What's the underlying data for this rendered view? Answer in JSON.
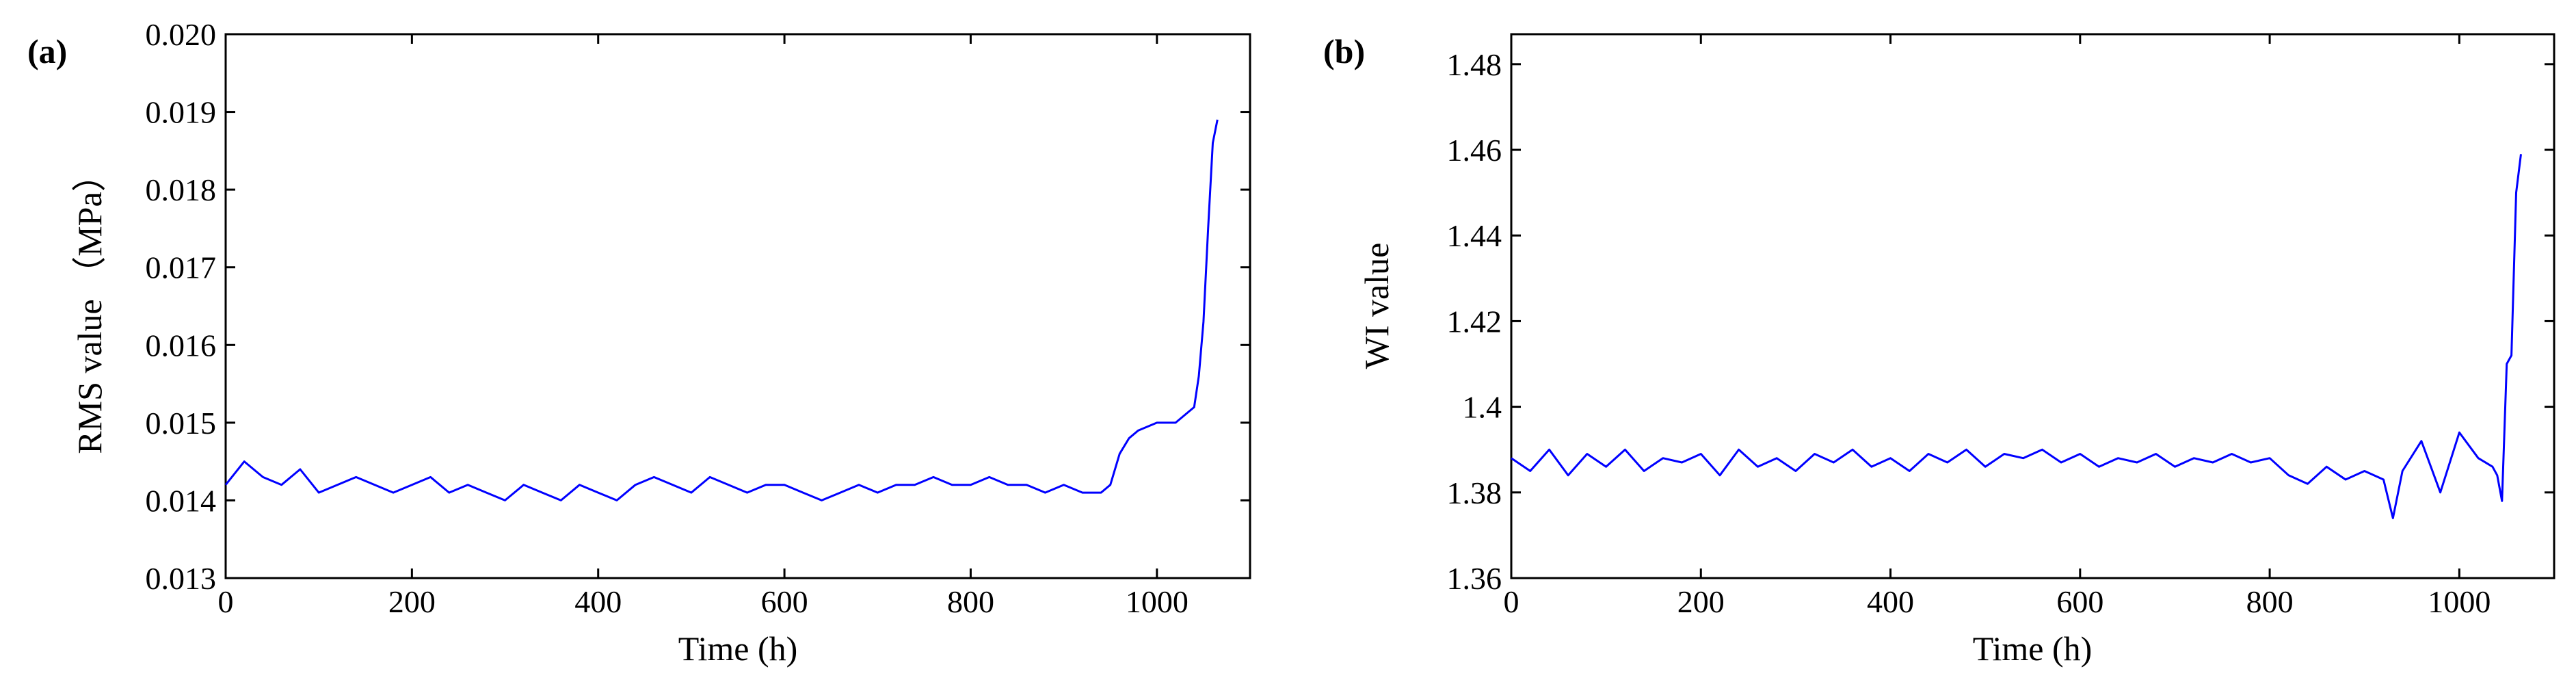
{
  "chart_data": [
    {
      "id": "a",
      "panel_label": "(a)",
      "type": "line",
      "title": "",
      "xlabel": "Time (h)",
      "ylabel": "RMS value （MPa）",
      "xlim": [
        0,
        1100
      ],
      "ylim": [
        0.013,
        0.02
      ],
      "xticks": [
        0,
        200,
        400,
        600,
        800,
        1000
      ],
      "xtick_labels": [
        "0",
        "200",
        "400",
        "600",
        "800",
        "1000"
      ],
      "yticks": [
        0.013,
        0.014,
        0.015,
        0.016,
        0.017,
        0.018,
        0.019,
        0.02
      ],
      "ytick_labels": [
        "0.013",
        "0.014",
        "0.015",
        "0.016",
        "0.017",
        "0.018",
        "0.019",
        "0.020"
      ],
      "grid": false,
      "series": [
        {
          "name": "RMS value",
          "color": "#0000ff",
          "x": [
            0,
            20,
            40,
            60,
            80,
            100,
            120,
            140,
            160,
            180,
            200,
            220,
            240,
            260,
            280,
            300,
            320,
            340,
            360,
            380,
            400,
            420,
            440,
            460,
            480,
            500,
            520,
            540,
            560,
            580,
            600,
            620,
            640,
            660,
            680,
            700,
            720,
            740,
            760,
            780,
            800,
            820,
            840,
            860,
            880,
            900,
            920,
            940,
            950,
            960,
            970,
            980,
            1000,
            1020,
            1030,
            1040,
            1045,
            1050,
            1055,
            1060,
            1065
          ],
          "values": [
            0.0142,
            0.0145,
            0.0143,
            0.0142,
            0.0144,
            0.0141,
            0.0142,
            0.0143,
            0.0142,
            0.0141,
            0.0142,
            0.0143,
            0.0141,
            0.0142,
            0.0141,
            0.014,
            0.0142,
            0.0141,
            0.014,
            0.0142,
            0.0141,
            0.014,
            0.0142,
            0.0143,
            0.0142,
            0.0141,
            0.0143,
            0.0142,
            0.0141,
            0.0142,
            0.0142,
            0.0141,
            0.014,
            0.0141,
            0.0142,
            0.0141,
            0.0142,
            0.0142,
            0.0143,
            0.0142,
            0.0142,
            0.0143,
            0.0142,
            0.0142,
            0.0141,
            0.0142,
            0.0141,
            0.0141,
            0.0142,
            0.0146,
            0.0148,
            0.0149,
            0.015,
            0.015,
            0.0151,
            0.0152,
            0.0156,
            0.0163,
            0.0175,
            0.0186,
            0.0189
          ]
        }
      ]
    },
    {
      "id": "b",
      "panel_label": "(b)",
      "type": "line",
      "title": "",
      "xlabel": "Time (h)",
      "ylabel": "WI value",
      "xlim": [
        0,
        1100
      ],
      "ylim": [
        1.36,
        1.487
      ],
      "xticks": [
        0,
        200,
        400,
        600,
        800,
        1000
      ],
      "xtick_labels": [
        "0",
        "200",
        "400",
        "600",
        "800",
        "1000"
      ],
      "yticks": [
        1.36,
        1.38,
        1.4,
        1.42,
        1.44,
        1.46,
        1.48
      ],
      "ytick_labels": [
        "1.36",
        "1.38",
        "1.4",
        "1.42",
        "1.44",
        "1.46",
        "1.48"
      ],
      "grid": false,
      "series": [
        {
          "name": "WI value",
          "color": "#0000ff",
          "x": [
            0,
            20,
            40,
            60,
            80,
            100,
            120,
            140,
            160,
            180,
            200,
            220,
            240,
            260,
            280,
            300,
            320,
            340,
            360,
            380,
            400,
            420,
            440,
            460,
            480,
            500,
            520,
            540,
            560,
            580,
            600,
            620,
            640,
            660,
            680,
            700,
            720,
            740,
            760,
            780,
            800,
            820,
            840,
            860,
            880,
            900,
            920,
            930,
            940,
            960,
            980,
            1000,
            1020,
            1035,
            1040,
            1045,
            1050,
            1055,
            1060,
            1065
          ],
          "values": [
            1.388,
            1.385,
            1.39,
            1.384,
            1.389,
            1.386,
            1.39,
            1.385,
            1.388,
            1.387,
            1.389,
            1.384,
            1.39,
            1.386,
            1.388,
            1.385,
            1.389,
            1.387,
            1.39,
            1.386,
            1.388,
            1.385,
            1.389,
            1.387,
            1.39,
            1.386,
            1.389,
            1.388,
            1.39,
            1.387,
            1.389,
            1.386,
            1.388,
            1.387,
            1.389,
            1.386,
            1.388,
            1.387,
            1.389,
            1.387,
            1.388,
            1.384,
            1.382,
            1.386,
            1.383,
            1.385,
            1.383,
            1.374,
            1.385,
            1.392,
            1.38,
            1.394,
            1.388,
            1.386,
            1.384,
            1.378,
            1.41,
            1.412,
            1.45,
            1.459
          ]
        }
      ]
    }
  ]
}
